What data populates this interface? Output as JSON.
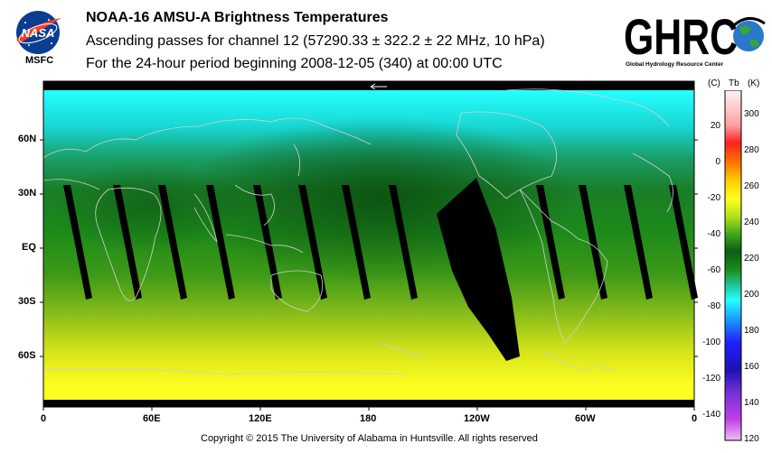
{
  "logos": {
    "nasa_text": "NASA",
    "msfc_label": "MSFC",
    "ghrc_text": "GHRC",
    "ghrc_subtitle": "Global Hydrology Resource Center"
  },
  "header": {
    "line1": "NOAA-16 AMSU-A Brightness Temperatures",
    "line2": "Ascending passes for channel 12 (57290.33 ± 322.2 ± 22 MHz, 10 hPa)",
    "line3": "For the 24-hour period beginning 2008-12-05 (340) at 00:00 UTC"
  },
  "map": {
    "lat_labels": [
      "60N",
      "30N",
      "EQ",
      "30S",
      "60S"
    ],
    "lon_labels": [
      "0",
      "60E",
      "120E",
      "180",
      "120W",
      "60W",
      "0"
    ],
    "colors": {
      "arctic_cyan": "#1fe6e6",
      "green": "#1f8a1a",
      "dark_green": "#0e5a12",
      "yellow": "#f2f21a",
      "swath": "#000000",
      "coast": "#c8c8c8"
    }
  },
  "colorbar": {
    "unit_c": "(C)",
    "unit_tb": "Tb",
    "unit_k": "(K)",
    "celsius_ticks": [
      "20",
      "0",
      "-20",
      "-40",
      "-60",
      "-80",
      "-100",
      "-120",
      "-140"
    ],
    "kelvin_ticks": [
      "300",
      "280",
      "260",
      "240",
      "220",
      "200",
      "180",
      "160",
      "140",
      "120"
    ]
  },
  "footer": {
    "copyright": "Copyright © 2015 The University of Alabama in Huntsville.  All rights reserved"
  }
}
